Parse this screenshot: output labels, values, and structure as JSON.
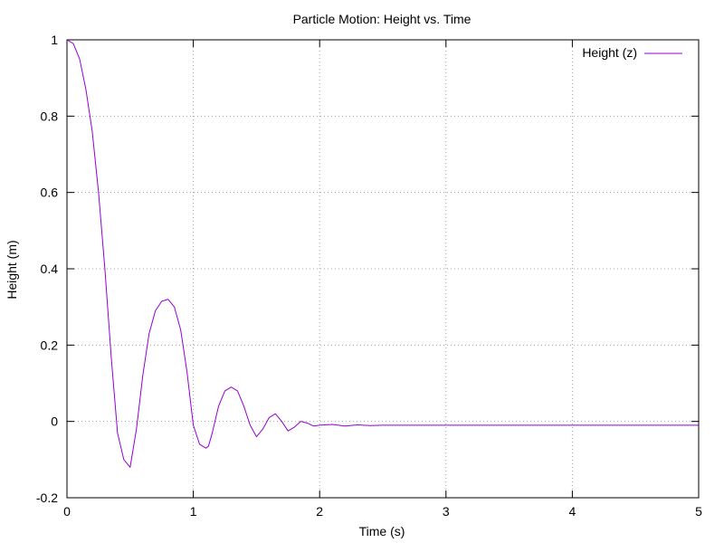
{
  "chart_data": {
    "type": "line",
    "title": "Particle Motion: Height vs. Time",
    "xlabel": "Time (s)",
    "ylabel": "Height (m)",
    "xlim": [
      0,
      5
    ],
    "ylim": [
      -0.2,
      1
    ],
    "x_ticks": [
      0,
      1,
      2,
      3,
      4,
      5
    ],
    "y_ticks": [
      -0.2,
      0,
      0.2,
      0.4,
      0.6,
      0.8,
      1
    ],
    "x_tick_labels": [
      "0",
      "1",
      "2",
      "3",
      "4",
      "5"
    ],
    "y_tick_labels": [
      "-0.2",
      "0",
      "0.2",
      "0.4",
      "0.6",
      "0.8",
      "1"
    ],
    "grid": true,
    "legend_position": "top-right",
    "series": [
      {
        "name": "Height (z)",
        "color": "#9400d3",
        "x": [
          0,
          0.05,
          0.1,
          0.15,
          0.2,
          0.25,
          0.3,
          0.35,
          0.4,
          0.45,
          0.5,
          0.55,
          0.6,
          0.65,
          0.7,
          0.75,
          0.8,
          0.85,
          0.9,
          0.95,
          1.0,
          1.05,
          1.1,
          1.12,
          1.15,
          1.2,
          1.25,
          1.3,
          1.35,
          1.4,
          1.45,
          1.5,
          1.55,
          1.6,
          1.65,
          1.7,
          1.75,
          1.8,
          1.85,
          1.9,
          1.95,
          2.0,
          2.1,
          2.2,
          2.3,
          2.4,
          2.5,
          3.0,
          3.5,
          4.0,
          4.5,
          5.0
        ],
        "y": [
          1.0,
          0.99,
          0.95,
          0.87,
          0.76,
          0.6,
          0.4,
          0.17,
          -0.03,
          -0.1,
          -0.12,
          -0.02,
          0.12,
          0.23,
          0.29,
          0.315,
          0.32,
          0.3,
          0.24,
          0.13,
          -0.01,
          -0.06,
          -0.07,
          -0.065,
          -0.03,
          0.04,
          0.08,
          0.09,
          0.08,
          0.04,
          -0.01,
          -0.04,
          -0.02,
          0.01,
          0.02,
          0.0,
          -0.025,
          -0.015,
          0.0,
          -0.004,
          -0.012,
          -0.01,
          -0.008,
          -0.012,
          -0.009,
          -0.011,
          -0.01,
          -0.01,
          -0.01,
          -0.01,
          -0.01,
          -0.01
        ]
      }
    ]
  }
}
